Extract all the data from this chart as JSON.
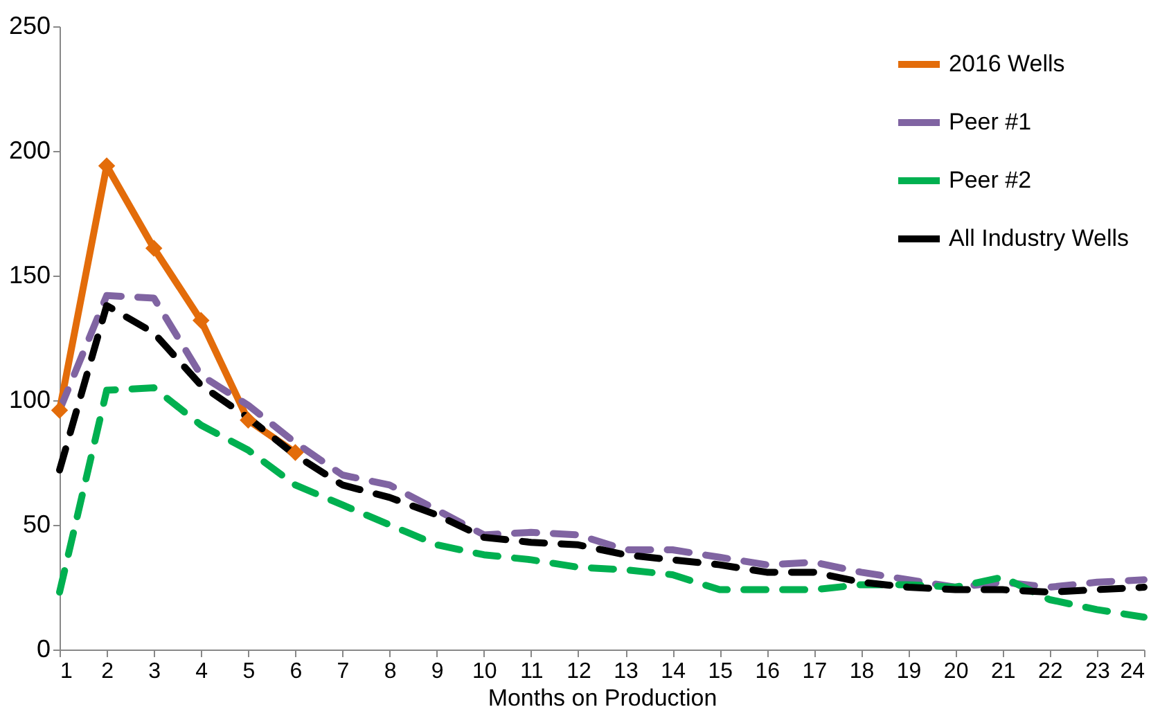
{
  "chart_data": {
    "type": "line",
    "xlabel": "Months on Production",
    "x": [
      1,
      2,
      3,
      4,
      5,
      6,
      7,
      8,
      9,
      10,
      11,
      12,
      13,
      14,
      15,
      16,
      17,
      18,
      19,
      20,
      21,
      22,
      23,
      24
    ],
    "xlim": [
      1,
      24
    ],
    "xticks": [
      1,
      2,
      3,
      4,
      5,
      6,
      7,
      8,
      9,
      10,
      11,
      12,
      13,
      14,
      15,
      16,
      17,
      18,
      19,
      20,
      21,
      22,
      23,
      24
    ],
    "ylim": [
      0,
      250
    ],
    "yticks": [
      0,
      50,
      100,
      150,
      200,
      250
    ],
    "grid": false,
    "legend": "top right",
    "series": [
      {
        "name": "2016 Wells",
        "color": "#e36c0a",
        "line_style": "solid",
        "marker": "diamond",
        "x": [
          1,
          2,
          3,
          4,
          5,
          6
        ],
        "values": [
          96,
          194,
          161,
          132,
          92,
          79
        ]
      },
      {
        "name": "Peer #1",
        "color": "#8064a2",
        "line_style": "dashed",
        "values": [
          96,
          142,
          141,
          110,
          98,
          83,
          70,
          66,
          56,
          46,
          47,
          46,
          40,
          40,
          37,
          34,
          35,
          31,
          28,
          25,
          27,
          25,
          27,
          28
        ]
      },
      {
        "name": "Peer #2",
        "color": "#00b050",
        "line_style": "dashed",
        "values": [
          23,
          104,
          105,
          90,
          80,
          66,
          58,
          50,
          42,
          38,
          36,
          33,
          32,
          30,
          24,
          24,
          24,
          26,
          26,
          25,
          29,
          20,
          16,
          13
        ]
      },
      {
        "name": "All Industry Wells",
        "color": "#000000",
        "line_style": "dashed",
        "values": [
          72,
          138,
          127,
          106,
          93,
          78,
          66,
          61,
          54,
          45,
          43,
          42,
          38,
          36,
          34,
          31,
          31,
          27,
          25,
          24,
          24,
          23,
          24,
          25
        ]
      }
    ]
  }
}
